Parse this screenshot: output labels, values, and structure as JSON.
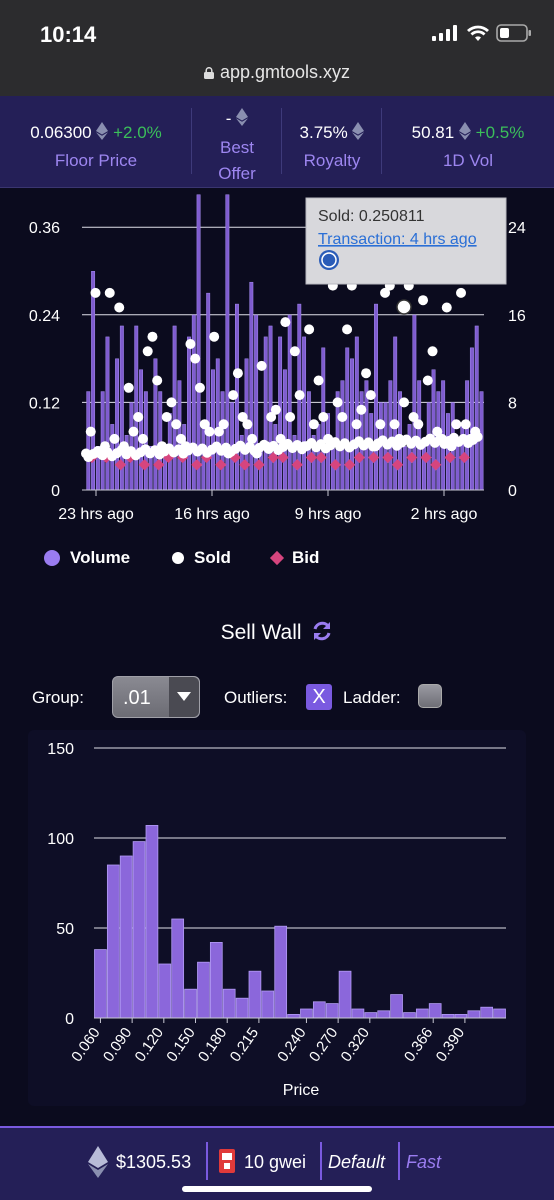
{
  "status_bar": {
    "time": "10:14",
    "url": "app.gmtools.xyz"
  },
  "stats": [
    {
      "value": "0.06300",
      "change": "+2.0%",
      "label": "Floor Price"
    },
    {
      "value": "-",
      "change": "",
      "label": "Best Offer"
    },
    {
      "value": "3.75%",
      "change": "",
      "label": "Royalty"
    },
    {
      "value": "50.81",
      "change": "+0.5%",
      "label": "1D Vol"
    }
  ],
  "tooltip": {
    "sold": "Sold: 0.250811",
    "link": "Transaction: 4 hrs ago"
  },
  "legend": {
    "volume": "Volume",
    "sold": "Sold",
    "bid": "Bid"
  },
  "colors": {
    "accent": "#9a7cf0",
    "bar": "#8b67db",
    "bid": "#d6457e",
    "positive": "#3bbf5a",
    "header_bg": "#241f57"
  },
  "chart_data": [
    {
      "type": "bar",
      "title": "",
      "x_ticks": [
        "23 hrs ago",
        "16 hrs ago",
        "9 hrs ago",
        "2 hrs ago"
      ],
      "y_left_ticks": [
        "0",
        "0.12",
        "0.24",
        "0.36"
      ],
      "y_right_ticks": [
        "0",
        "8",
        "16",
        "24"
      ],
      "ylim_left": [
        0,
        0.4
      ],
      "ylim_right": [
        0,
        26.7
      ],
      "series": [
        {
          "name": "Volume",
          "axis": "right",
          "values": [
            9,
            20,
            4,
            9,
            14,
            6,
            12,
            15,
            5,
            8,
            15,
            11,
            9,
            4,
            12,
            9,
            4,
            7,
            15,
            10,
            6,
            14,
            16,
            27,
            6,
            18,
            11,
            12,
            9,
            27,
            8,
            17,
            5,
            12,
            19,
            16,
            4,
            14,
            15,
            6,
            14,
            11,
            16,
            5,
            17,
            14,
            9,
            5,
            6,
            13,
            7,
            4,
            9,
            10,
            13,
            12,
            14,
            9,
            10,
            7,
            17,
            8,
            8,
            10,
            14,
            9,
            4,
            6,
            16,
            10,
            4,
            8,
            11,
            9,
            10,
            7,
            8,
            4,
            6,
            10,
            13,
            15,
            9
          ]
        },
        {
          "name": "Sold",
          "axis": "left",
          "values": [
            0.05,
            0.08,
            0.27,
            0.05,
            0.06,
            0.27,
            0.07,
            0.25,
            0.06,
            0.14,
            0.08,
            0.1,
            0.07,
            0.19,
            0.21,
            0.15,
            0.06,
            0.1,
            0.12,
            0.09,
            0.07,
            0.06,
            0.2,
            0.18,
            0.14,
            0.09,
            0.08,
            0.21,
            0.08,
            0.09,
            0.05,
            0.13,
            0.16,
            0.1,
            0.09,
            0.07,
            0.05,
            0.17,
            0.06,
            0.1,
            0.11,
            0.07,
            0.23,
            0.1,
            0.19,
            0.13,
            0.06,
            0.22,
            0.09,
            0.15,
            0.1,
            0.07,
            0.28,
            0.12,
            0.1,
            0.22,
            0.28,
            0.09,
            0.11,
            0.16,
            0.13,
            0.06,
            0.09,
            0.27,
            0.28,
            0.09,
            0.07,
            0.12,
            0.28,
            0.1,
            0.09,
            0.26,
            0.15,
            0.19,
            0.08,
            0.07,
            0.25,
            0.06,
            0.09,
            0.27,
            0.09,
            0.07,
            0.08
          ]
        },
        {
          "name": "Bid",
          "axis": "left",
          "values": [
            0.05,
            0.05,
            0.04,
            0.05,
            0.04,
            0.04,
            0.05,
            0.05,
            0.04,
            0.05,
            0.04,
            0.05,
            0.04,
            0.04,
            0.05,
            0.05,
            0.04,
            0.05,
            0.05,
            0.04,
            0.04,
            0.05,
            0.05,
            0.05,
            0.04,
            0.05,
            0.05,
            0.04,
            0.05,
            0.05
          ]
        }
      ]
    },
    {
      "type": "bar",
      "title": "Sell Wall",
      "xlabel": "Price",
      "ylabel": "",
      "ylim": [
        0,
        150
      ],
      "y_ticks": [
        "0",
        "50",
        "100",
        "150"
      ],
      "x_ticks": [
        "0.060",
        "0.090",
        "0.120",
        "0.150",
        "0.180",
        "0.215",
        "0.240",
        "0.270",
        "0.320",
        "0.366",
        "0.390"
      ],
      "values": [
        38,
        85,
        90,
        98,
        107,
        30,
        55,
        16,
        31,
        42,
        16,
        11,
        26,
        15,
        51,
        2,
        5,
        9,
        8,
        26,
        5,
        3,
        4,
        13,
        3,
        5,
        8,
        2,
        2,
        4,
        6,
        5
      ]
    }
  ],
  "sell_wall": {
    "title": "Sell Wall",
    "group_label": "Group:",
    "group_value": ".01",
    "outliers_label": "Outliers:",
    "outliers_check": "X",
    "ladder_label": "Ladder:"
  },
  "footer": {
    "eth_price": "$1305.53",
    "gas": "10 gwei",
    "default": "Default",
    "fast": "Fast"
  }
}
